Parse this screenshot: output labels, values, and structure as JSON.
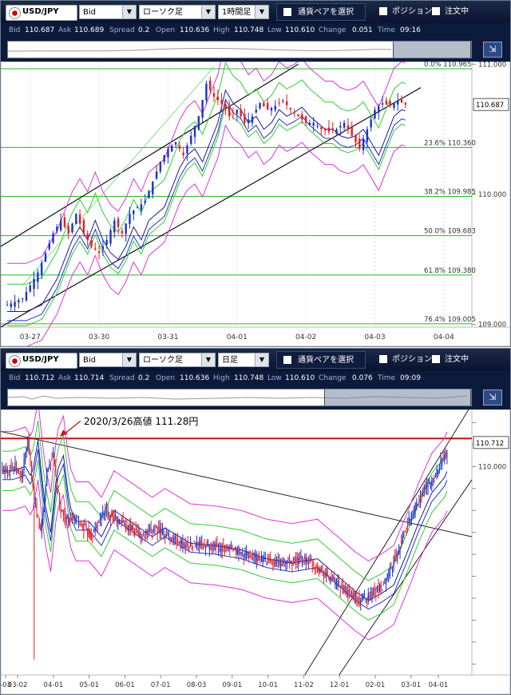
{
  "panels": [
    {
      "toolbar": {
        "pair": "USD/JPY",
        "price_type": "Bid",
        "chart_type": "ローソク足",
        "timeframe": "1時間足",
        "select_pair_label": "通貨ペアを選択",
        "position_label": "ポジション",
        "order_label": "注文中"
      },
      "quote": {
        "bid_label": "Bid",
        "bid": "110.687",
        "ask_label": "Ask",
        "ask": "110.689",
        "spread_label": "Spread",
        "spread": "0.2",
        "open_label": "Open",
        "open": "110.636",
        "high_label": "High",
        "high": "110.748",
        "low_label": "Low",
        "low": "110.610",
        "change_label": "Change",
        "change": "0.051",
        "time_label": "Time",
        "time": "09:16"
      }
    },
    {
      "toolbar": {
        "pair": "USD/JPY",
        "price_type": "Bid",
        "chart_type": "ローソク足",
        "timeframe": "日足",
        "select_pair_label": "通貨ペアを選択",
        "position_label": "ポジション",
        "order_label": "注文中"
      },
      "quote": {
        "bid_label": "Bid",
        "bid": "110.712",
        "ask_label": "Ask",
        "ask": "110.714",
        "spread_label": "Spread",
        "spread": "0.2",
        "open_label": "Open",
        "open": "110.636",
        "high_label": "High",
        "high": "110.748",
        "low_label": "Low",
        "low": "110.610",
        "change_label": "Change",
        "change": "0.076",
        "time_label": "Time",
        "time": "09:09"
      }
    }
  ],
  "chart_data": [
    {
      "type": "candlestick",
      "pair": "USD/JPY",
      "timeframe": "1時間足",
      "ylim": [
        109.0,
        111.0
      ],
      "y_ticks": [
        "111.000",
        "110.000",
        "109.000"
      ],
      "current_price": "110.687",
      "x_ticks": [
        "03-27",
        "03-30",
        "03-31",
        "04-01",
        "04-02",
        "04-03",
        "04-04"
      ],
      "x_tick_index": [
        6,
        24,
        42,
        60,
        78,
        96,
        114
      ],
      "fibonacci": [
        {
          "label": "0.0%",
          "value": "110.965"
        },
        {
          "label": "23.6%",
          "value": "110.360"
        },
        {
          "label": "38.2%",
          "value": "109.985"
        },
        {
          "label": "50.0%",
          "value": "109.683"
        },
        {
          "label": "61.8%",
          "value": "109.380"
        },
        {
          "label": "76.4%",
          "value": "109.005"
        }
      ],
      "fib_values": [
        110.965,
        110.36,
        109.985,
        109.683,
        109.38,
        109.005
      ],
      "bands": "Bollinger bands (magenta, green) with moving averages (blue)",
      "channel_lines": 2,
      "close_path": [
        [
          0,
          109.15
        ],
        [
          4,
          109.2
        ],
        [
          8,
          109.4
        ],
        [
          10,
          109.55
        ],
        [
          12,
          109.7
        ],
        [
          14,
          109.8
        ],
        [
          16,
          109.7
        ],
        [
          18,
          109.85
        ],
        [
          20,
          109.7
        ],
        [
          22,
          109.6
        ],
        [
          24,
          109.55
        ],
        [
          26,
          109.65
        ],
        [
          28,
          109.8
        ],
        [
          30,
          109.7
        ],
        [
          32,
          109.85
        ],
        [
          34,
          109.9
        ],
        [
          36,
          109.95
        ],
        [
          38,
          110.1
        ],
        [
          40,
          110.25
        ],
        [
          42,
          110.35
        ],
        [
          44,
          110.4
        ],
        [
          46,
          110.3
        ],
        [
          48,
          110.45
        ],
        [
          50,
          110.6
        ],
        [
          52,
          110.85
        ],
        [
          54,
          110.75
        ],
        [
          56,
          110.7
        ],
        [
          58,
          110.6
        ],
        [
          60,
          110.65
        ],
        [
          62,
          110.55
        ],
        [
          64,
          110.6
        ],
        [
          66,
          110.7
        ],
        [
          68,
          110.65
        ],
        [
          70,
          110.68
        ],
        [
          72,
          110.72
        ],
        [
          74,
          110.65
        ],
        [
          76,
          110.6
        ],
        [
          78,
          110.55
        ],
        [
          80,
          110.55
        ],
        [
          82,
          110.5
        ],
        [
          84,
          110.48
        ],
        [
          86,
          110.5
        ],
        [
          88,
          110.55
        ],
        [
          90,
          110.45
        ],
        [
          92,
          110.35
        ],
        [
          94,
          110.5
        ],
        [
          96,
          110.65
        ],
        [
          98,
          110.7
        ],
        [
          100,
          110.68
        ],
        [
          102,
          110.72
        ],
        [
          104,
          110.69
        ]
      ]
    },
    {
      "type": "candlestick",
      "pair": "USD/JPY",
      "timeframe": "日足",
      "annotation": "2020/3/26高値  111.28円",
      "resistance": 111.28,
      "y_ticks": [
        "110.000"
      ],
      "current_price": "110.712",
      "x_ticks": [
        "-03",
        "03-02",
        "04-01",
        "05-01",
        "06-01",
        "07-01",
        "08-03",
        "09-01",
        "10-01",
        "11-02",
        "12-01",
        "02-01",
        "03-01",
        "04-01"
      ],
      "close_path": [
        [
          0,
          109.8
        ],
        [
          10,
          110.0
        ],
        [
          15,
          109.5
        ],
        [
          20,
          111.2
        ],
        [
          25,
          108.5
        ],
        [
          30,
          107.0
        ],
        [
          35,
          109.8
        ],
        [
          40,
          110.5
        ],
        [
          45,
          108.2
        ],
        [
          50,
          107.5
        ],
        [
          60,
          107.5
        ],
        [
          70,
          106.8
        ],
        [
          80,
          108.0
        ],
        [
          90,
          107.6
        ],
        [
          100,
          107.2
        ],
        [
          110,
          106.8
        ],
        [
          120,
          107.2
        ],
        [
          140,
          106.5
        ],
        [
          160,
          106.4
        ],
        [
          180,
          106.2
        ],
        [
          200,
          105.8
        ],
        [
          220,
          105.6
        ],
        [
          240,
          105.8
        ],
        [
          260,
          104.8
        ],
        [
          270,
          104.3
        ],
        [
          280,
          103.9
        ],
        [
          290,
          104.2
        ],
        [
          300,
          104.6
        ],
        [
          310,
          106.0
        ],
        [
          320,
          107.5
        ],
        [
          330,
          108.8
        ],
        [
          340,
          109.5
        ],
        [
          345,
          110.2
        ],
        [
          350,
          110.7
        ]
      ]
    }
  ]
}
